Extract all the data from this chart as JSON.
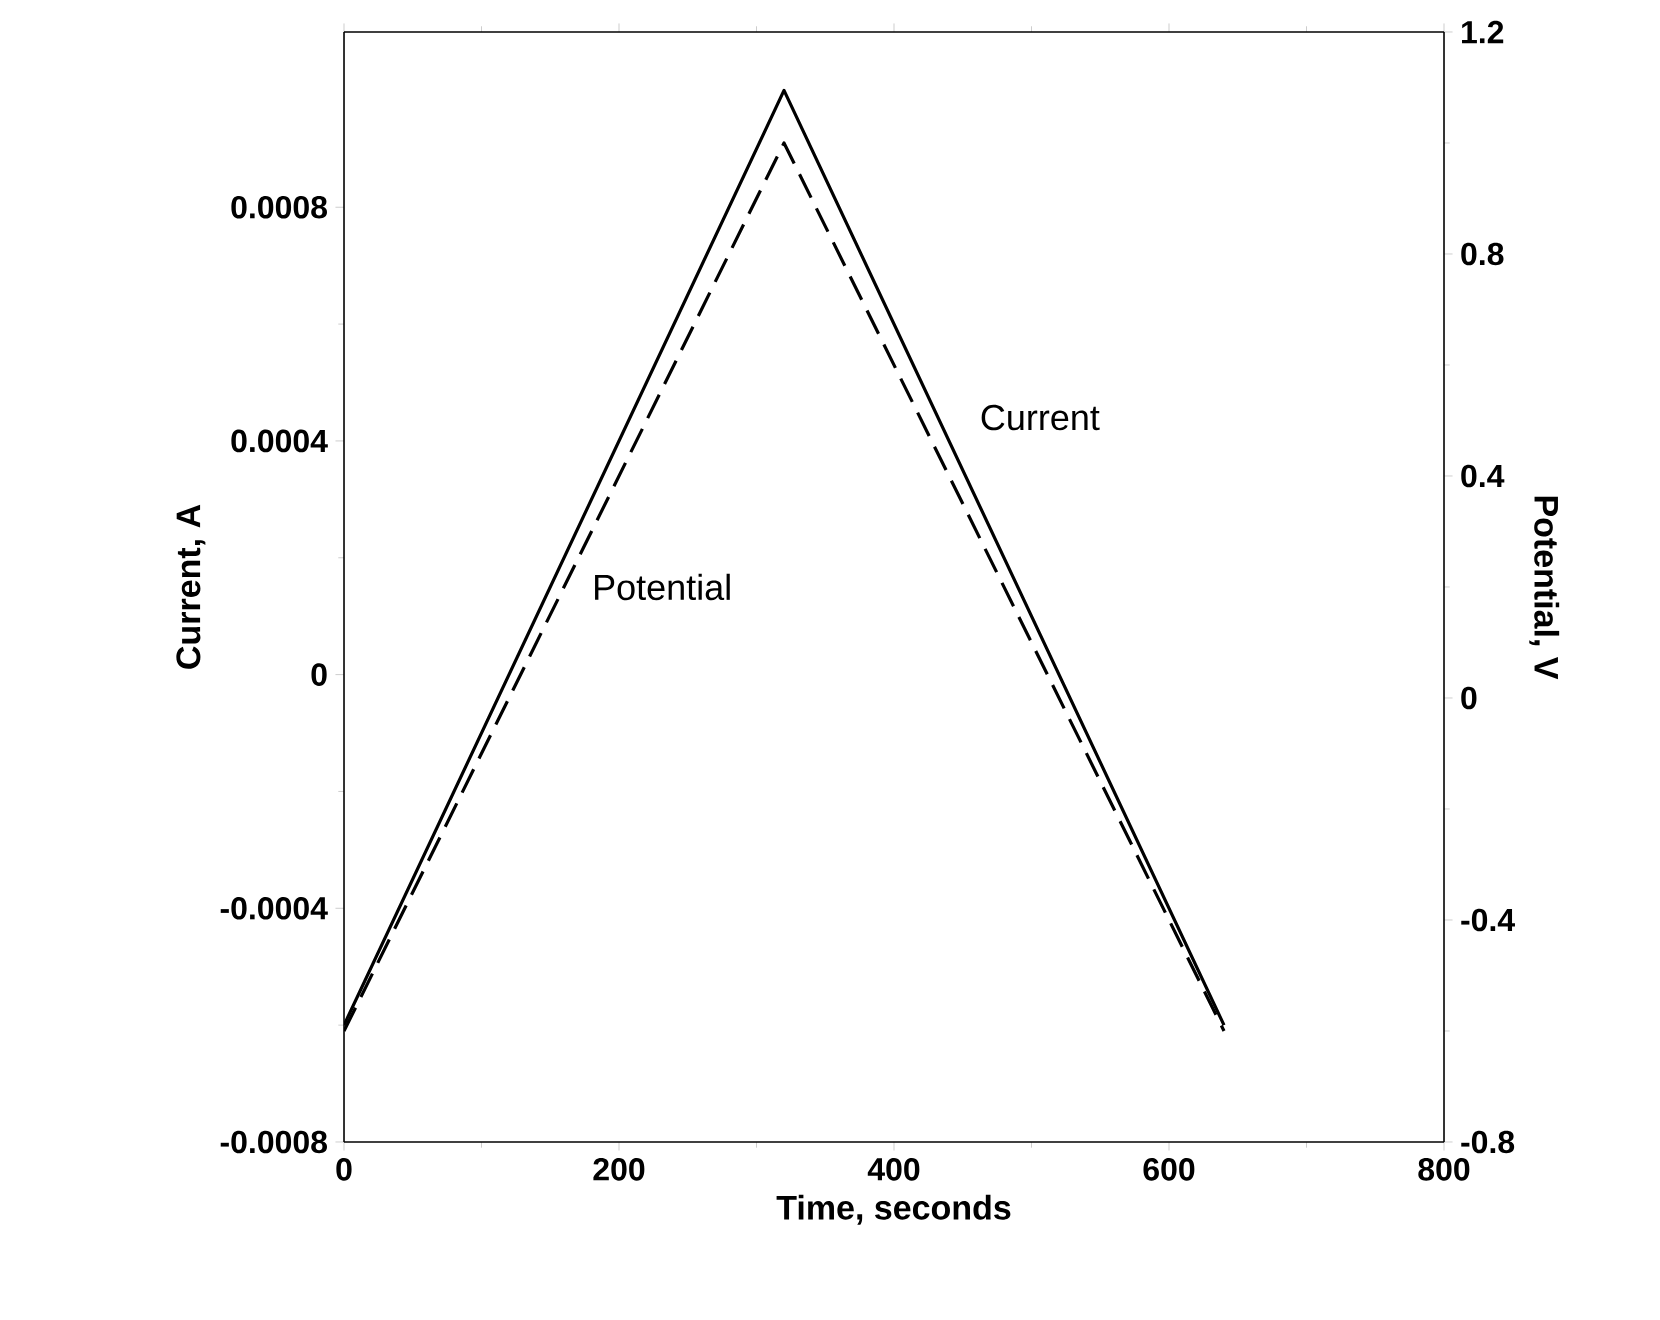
{
  "chart_data": {
    "type": "line",
    "xlabel": "Time, seconds",
    "ylabel": "Current, A",
    "y2label": "Potential, V",
    "x": [
      0,
      320,
      640
    ],
    "series": [
      {
        "name": "Current",
        "color": "#000000",
        "values": [
          -0.0006,
          0.001,
          -0.0006
        ],
        "line_style": "solid"
      },
      {
        "name": "Potential",
        "color": "#000000",
        "values": [
          -0.6,
          1.0,
          -0.6
        ],
        "line_style": "dashed",
        "axis": "y2"
      }
    ],
    "xlim": [
      0,
      800
    ],
    "xticks": [
      0,
      200,
      400,
      600,
      800
    ],
    "ylim": [
      -0.0008,
      0.0011
    ],
    "yticks": [
      -0.0008,
      -0.0004,
      0,
      0.0004,
      0.0008
    ],
    "y2lim": [
      -0.8,
      1.2
    ],
    "y2ticks": [
      -0.8,
      -0.4,
      0,
      0.4,
      0.8,
      1.2
    ],
    "grid": false,
    "legend": false,
    "marker": "none"
  }
}
